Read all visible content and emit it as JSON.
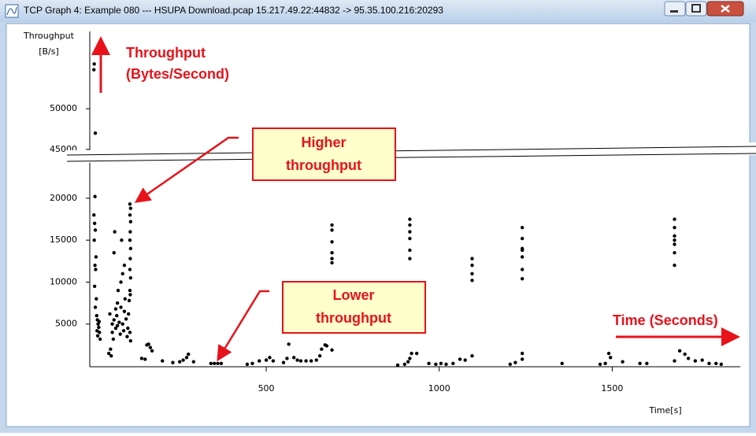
{
  "window": {
    "title": "TCP Graph 4: Example 080 --- HSUPA Download.pcap 15.217.49.22:44832 -> 95.35.100.216:20293"
  },
  "annotations": [
    {
      "lines": [
        "Throughput",
        "(Bytes/Second)"
      ]
    },
    {
      "lines": [
        "Higher",
        "throughput"
      ]
    },
    {
      "lines": [
        "Lower",
        "throughput"
      ]
    },
    {
      "lines": [
        "Time (Seconds)"
      ]
    }
  ],
  "chart_data": [
    {
      "type": "scatter",
      "y_label": [
        "Throughput",
        "[B/s]"
      ],
      "color": "#000000",
      "x": [
        3,
        7,
        6,
        2
      ],
      "values": [
        55500,
        57000,
        47000,
        54800
      ],
      "xlim": [
        -10,
        1870
      ],
      "ylim": [
        44500,
        59500
      ],
      "yticks": [
        45000,
        50000
      ]
    },
    {
      "type": "scatter",
      "x_label": "Time[s]",
      "color": "#000000",
      "x": [
        5,
        2,
        4,
        6,
        3,
        8,
        5,
        7,
        4,
        9,
        6,
        10,
        12,
        14,
        16,
        18,
        13,
        20,
        11,
        17,
        45,
        50,
        55,
        55,
        60,
        60,
        62,
        65,
        68,
        70,
        72,
        75,
        78,
        80,
        82,
        85,
        88,
        90,
        92,
        95,
        98,
        100,
        102,
        104,
        106,
        90,
        85,
        80,
        70,
        65,
        58,
        52,
        48,
        106,
        108,
        106,
        108,
        107,
        106,
        108,
        107,
        106,
        108,
        107,
        106,
        108,
        140,
        150,
        155,
        160,
        165,
        170,
        200,
        230,
        250,
        260,
        270,
        275,
        290,
        340,
        350,
        360,
        370,
        445,
        460,
        480,
        500,
        510,
        520,
        550,
        560,
        565,
        580,
        590,
        600,
        615,
        630,
        645,
        655,
        660,
        670,
        675,
        690,
        690,
        690,
        690,
        690,
        690,
        690,
        915,
        915,
        915,
        915,
        915,
        915,
        920,
        935,
        900,
        910,
        915,
        880,
        970,
        990,
        1005,
        1020,
        1040,
        1060,
        1075,
        1095,
        1095,
        1095,
        1095,
        1095,
        1205,
        1220,
        1240,
        1240,
        1240,
        1240,
        1240,
        1240,
        1240,
        1240,
        1240,
        1355,
        1465,
        1480,
        1490,
        1495,
        1530,
        1580,
        1600,
        1680,
        1680,
        1680,
        1680,
        1680,
        1680,
        1680,
        1680,
        1695,
        1710,
        1720,
        1740,
        1760,
        1780,
        1800,
        1815
      ],
      "values": [
        20200,
        18000,
        17000,
        16200,
        15000,
        13000,
        12000,
        11500,
        9500,
        8000,
        7000,
        6000,
        5500,
        5000,
        4600,
        4000,
        3600,
        3200,
        4200,
        5300,
        1500,
        2000,
        4000,
        5000,
        5500,
        13500,
        16000,
        4500,
        6000,
        4800,
        9000,
        5200,
        3800,
        7000,
        15000,
        5000,
        4200,
        6500,
        8000,
        5600,
        3500,
        4500,
        6200,
        7800,
        9000,
        12000,
        11000,
        10000,
        7500,
        6800,
        3200,
        1200,
        6200,
        19300,
        18800,
        18000,
        17200,
        16000,
        15000,
        14000,
        12800,
        11500,
        10500,
        8500,
        4000,
        3000,
        900,
        800,
        2500,
        2600,
        2200,
        1800,
        600,
        400,
        500,
        700,
        1000,
        1400,
        500,
        300,
        300,
        300,
        300,
        200,
        300,
        600,
        700,
        1000,
        600,
        400,
        900,
        2600,
        1000,
        700,
        600,
        600,
        600,
        700,
        1200,
        2000,
        2500,
        2400,
        1900,
        16800,
        16200,
        14800,
        13500,
        12800,
        12300,
        17500,
        16800,
        16000,
        15200,
        13800,
        12800,
        1500,
        1500,
        200,
        500,
        900,
        100,
        300,
        200,
        300,
        200,
        300,
        800,
        700,
        1200,
        12800,
        12000,
        11000,
        10200,
        200,
        400,
        1500,
        800,
        16500,
        15200,
        14000,
        13800,
        13000,
        11500,
        10400,
        300,
        200,
        300,
        1500,
        1000,
        500,
        300,
        300,
        17500,
        16500,
        15500,
        15000,
        14500,
        13500,
        12000,
        600,
        1800,
        1400,
        900,
        600,
        700,
        300,
        300,
        200
      ],
      "xlim": [
        -10,
        1870
      ],
      "ylim": [
        0,
        24400
      ],
      "xticks": [
        500,
        1000,
        1500
      ],
      "yticks": [
        5000,
        10000,
        15000,
        20000
      ]
    }
  ]
}
